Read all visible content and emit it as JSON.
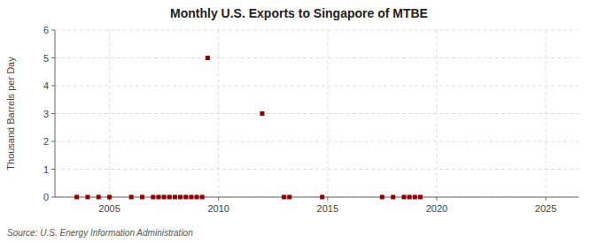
{
  "chart_data": {
    "type": "scatter",
    "title": "Monthly U.S. Exports to Singapore of MTBE",
    "y_label": "Thousand Barrels per Day",
    "source": "Source: U.S. Energy Information Administration",
    "x": [
      2003.5,
      2004.0,
      2004.5,
      2005.0,
      2006.0,
      2006.5,
      2007.0,
      2007.25,
      2007.5,
      2007.75,
      2008.0,
      2008.25,
      2008.5,
      2008.75,
      2009.0,
      2009.25,
      2009.5,
      2012.0,
      2013.0,
      2013.25,
      2014.75,
      2017.5,
      2018.0,
      2018.5,
      2018.75,
      2019.0,
      2019.25
    ],
    "values": [
      0.0,
      0.0,
      0.0,
      0.0,
      0.0,
      0.0,
      0.0,
      0.0,
      0.0,
      0.0,
      0.0,
      0.0,
      0.0,
      0.0,
      0.0,
      0.0,
      5.0,
      3.0,
      0.0,
      0.0,
      0.0,
      0.0,
      0.0,
      0.0,
      0.0,
      0.0,
      0.0
    ],
    "color": "#8b0000",
    "marker": "square",
    "xlim": [
      2002.5,
      2026.5
    ],
    "ylim": [
      0,
      6
    ],
    "xticks": [
      2005,
      2010,
      2015,
      2020,
      2025
    ],
    "yticks": [
      0,
      1,
      2,
      3,
      4,
      5,
      6
    ],
    "grid": true
  }
}
